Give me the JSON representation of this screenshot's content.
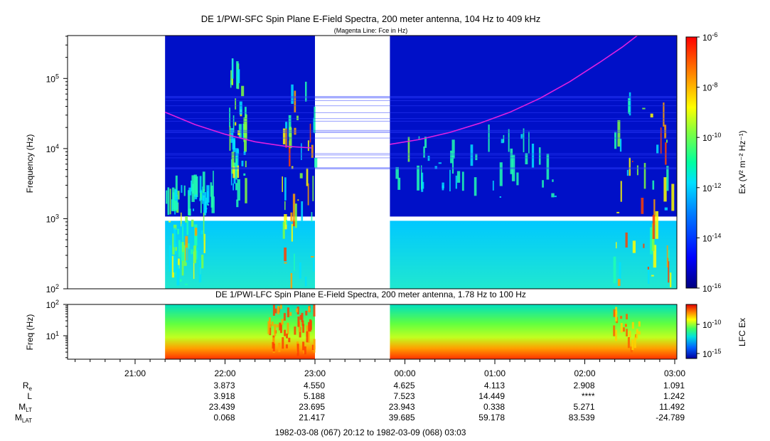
{
  "chart_data": [
    {
      "type": "heatmap",
      "title": "DE 1/PWI-SFC  Spin Plane E-Field Spectra, 200 meter antenna, 104 Hz to 409 kHz",
      "subtitle": "(Magenta Line: Fce in Hz)",
      "ylabel": "Frequency (Hz)",
      "yscale": "log",
      "ylim": [
        100,
        409000
      ],
      "yticks": [
        {
          "value": 100,
          "base": "10",
          "exp": "2"
        },
        {
          "value": 1000,
          "base": "10",
          "exp": "3"
        },
        {
          "value": 10000,
          "base": "10",
          "exp": "4"
        },
        {
          "value": 100000,
          "base": "10",
          "exp": "5"
        }
      ],
      "data_gaps_utc": [
        [
          "20:12",
          "21:20"
        ],
        [
          "23:00",
          "23:50"
        ]
      ],
      "colorbar": {
        "label": "Ex (V² m⁻² Hz⁻¹)",
        "scale": "log",
        "range": [
          1e-16,
          1e-06
        ],
        "ticks": [
          {
            "base": "10",
            "exp": "-6"
          },
          {
            "base": "10",
            "exp": "-8"
          },
          {
            "base": "10",
            "exp": "-10"
          },
          {
            "base": "10",
            "exp": "-12"
          },
          {
            "base": "10",
            "exp": "-14"
          },
          {
            "base": "10",
            "exp": "-16"
          }
        ]
      },
      "overlay_fce": {
        "color": "#e020e0",
        "points": [
          {
            "t": "21:20",
            "f": 33000
          },
          {
            "t": "21:40",
            "f": 22000
          },
          {
            "t": "22:00",
            "f": 16000
          },
          {
            "t": "22:20",
            "f": 12500
          },
          {
            "t": "22:40",
            "f": 10800
          },
          {
            "t": "22:58",
            "f": 10200
          },
          {
            "t": "23:50",
            "f": 11500
          },
          {
            "t": "00:10",
            "f": 13500
          },
          {
            "t": "00:30",
            "f": 17000
          },
          {
            "t": "00:50",
            "f": 23000
          },
          {
            "t": "01:10",
            "f": 33000
          },
          {
            "t": "01:30",
            "f": 52000
          },
          {
            "t": "01:50",
            "f": 90000
          },
          {
            "t": "02:10",
            "f": 170000
          },
          {
            "t": "02:25",
            "f": 280000
          },
          {
            "t": "02:35",
            "f": 409000
          }
        ]
      }
    },
    {
      "type": "heatmap",
      "title": "DE 1/PWI-LFC  Spin Plane E-Field Spectra, 200 meter antenna, 1.78 Hz to 100 Hz",
      "ylabel": "Freq (Hz)",
      "yscale": "log",
      "ylim": [
        1.78,
        100
      ],
      "yticks": [
        {
          "value": 10,
          "base": "10",
          "exp": "1"
        },
        {
          "value": 100,
          "base": "10",
          "exp": "2"
        }
      ],
      "colorbar": {
        "label": "LFC Ex",
        "ticks": [
          {
            "base": "10",
            "exp": "-10"
          },
          {
            "base": "10",
            "exp": "-15"
          }
        ]
      }
    }
  ],
  "time_axis": {
    "ticks": [
      "21:00",
      "22:00",
      "23:00",
      "00:00",
      "01:00",
      "02:00",
      "03:00"
    ],
    "range_label": "1982-03-08 (067) 20:12 to 1982-03-09 (068) 03:03"
  },
  "ephemeris": {
    "rows": [
      {
        "label": "R",
        "sub": "e",
        "values": [
          "3.873",
          "4.550",
          "4.625",
          "4.113",
          "2.908",
          "1.091"
        ]
      },
      {
        "label": "L",
        "sub": "",
        "values": [
          "3.918",
          "5.188",
          "7.523",
          "14.449",
          "****",
          "1.242"
        ]
      },
      {
        "label": "M",
        "sub": "LT",
        "values": [
          "23.439",
          "23.695",
          "23.943",
          "0.338",
          "5.271",
          "11.492"
        ]
      },
      {
        "label": "M",
        "sub": "LAT",
        "values": [
          "0.068",
          "21.417",
          "39.685",
          "59.178",
          "83.539",
          "-24.789"
        ]
      }
    ]
  }
}
